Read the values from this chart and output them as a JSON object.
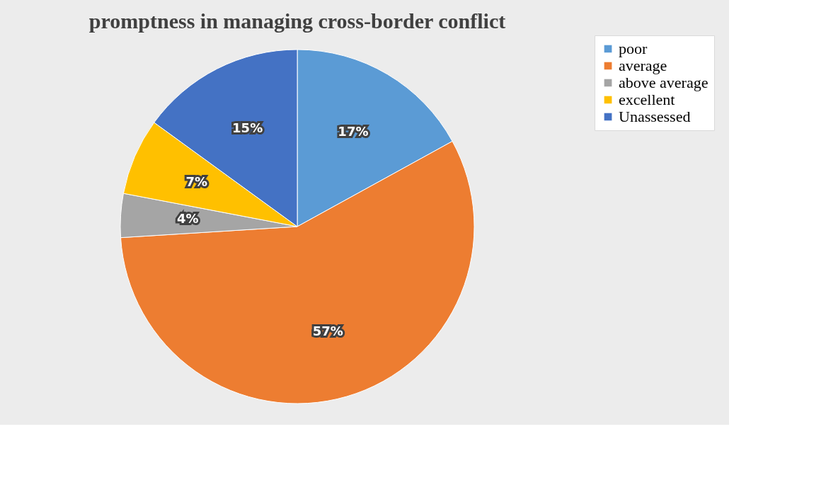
{
  "chart_data": {
    "type": "pie",
    "title": "promptness in managing cross-border conflict",
    "categories": [
      "poor",
      "average",
      "above average",
      "excellent",
      "Unassessed"
    ],
    "values": [
      17,
      57,
      4,
      7,
      15
    ],
    "colors": [
      "#5b9bd5",
      "#ed7d31",
      "#a5a5a5",
      "#ffc000",
      "#4472c4"
    ],
    "value_labels": [
      "17%",
      "57%",
      "4%",
      "7%",
      "15%"
    ],
    "legend": "right"
  }
}
